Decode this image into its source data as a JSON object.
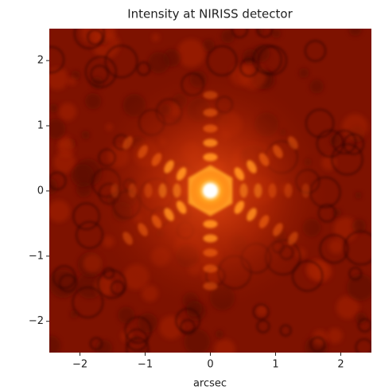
{
  "chart_data": {
    "type": "image",
    "title": "Intensity at NIRISS detector",
    "xlabel": "arcsec",
    "xlim": [
      -2.47,
      2.47
    ],
    "ylim": [
      -2.48,
      2.49
    ],
    "xticks": [
      {
        "value": -2,
        "label": "−2"
      },
      {
        "value": -1,
        "label": "−1"
      },
      0,
      1,
      2
    ],
    "yticks": [
      {
        "value": -2,
        "label": "−2"
      },
      {
        "value": -1,
        "label": "−1"
      },
      0,
      1,
      2
    ]
  }
}
